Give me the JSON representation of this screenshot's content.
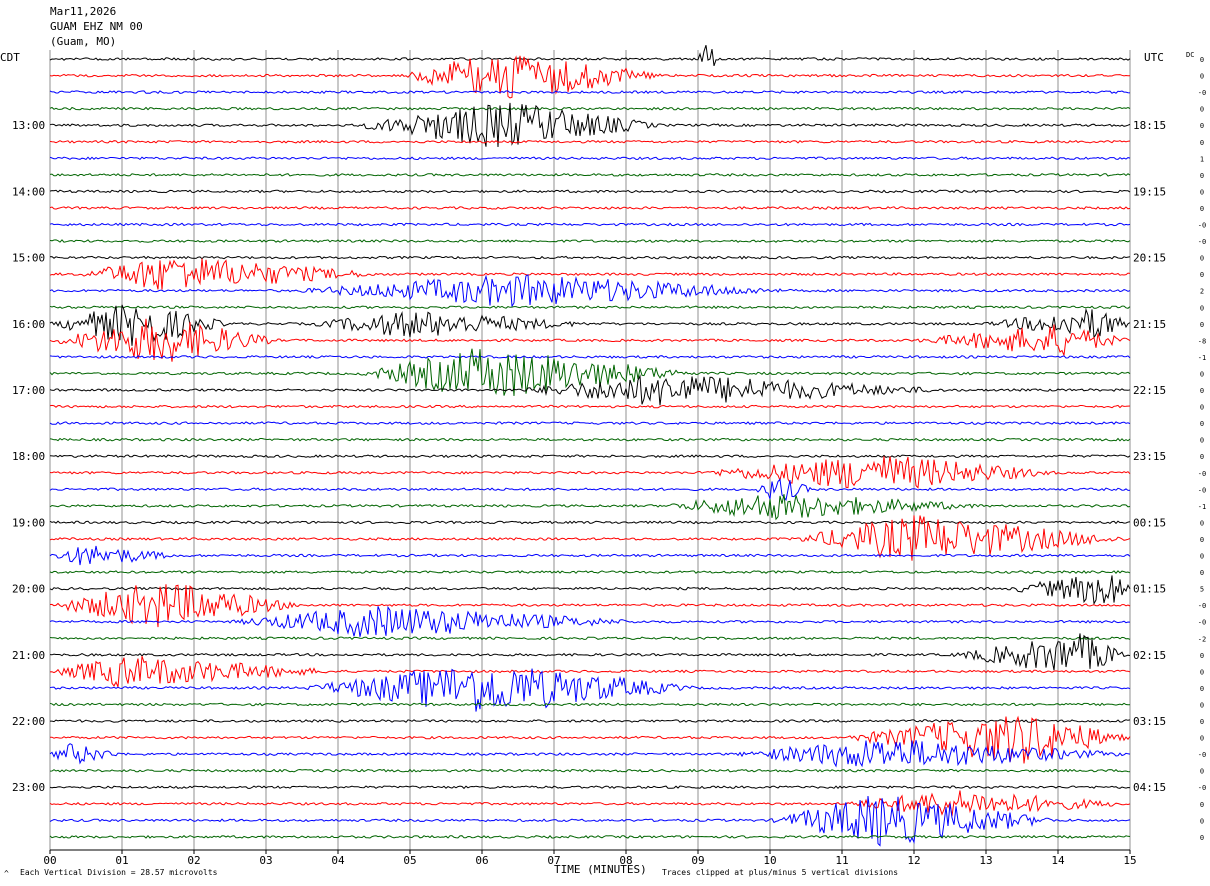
{
  "header": {
    "date": "Mar11,2026",
    "station": "GUAM EHZ NM 00",
    "location": "(Guam, MO)"
  },
  "left_axis_title": "CDT",
  "right_axis_title": "UTC",
  "dc_label": "DC",
  "footer": {
    "scale_note": "Each Vertical Division =   28.57 microvolts",
    "clip_note": "Traces clipped at plus/minus 5 vertical divisions",
    "corner_mark": "^"
  },
  "chart_data": {
    "type": "line",
    "title": "",
    "xlabel": "TIME (MINUTES)",
    "ylabel": "",
    "xlim": [
      0,
      15
    ],
    "x_ticks": [
      "00",
      "01",
      "02",
      "03",
      "04",
      "05",
      "06",
      "07",
      "08",
      "09",
      "10",
      "11",
      "12",
      "13",
      "14",
      "15"
    ],
    "trace_count": 48,
    "trace_colors": [
      "#000000",
      "#ff0000",
      "#0000ff",
      "#006400"
    ],
    "left_hour_labels": [
      {
        "trace": 4,
        "label": "13:00"
      },
      {
        "trace": 8,
        "label": "14:00"
      },
      {
        "trace": 12,
        "label": "15:00"
      },
      {
        "trace": 16,
        "label": "16:00"
      },
      {
        "trace": 20,
        "label": "17:00"
      },
      {
        "trace": 24,
        "label": "18:00"
      },
      {
        "trace": 28,
        "label": "19:00"
      },
      {
        "trace": 32,
        "label": "20:00"
      },
      {
        "trace": 36,
        "label": "21:00"
      },
      {
        "trace": 40,
        "label": "22:00"
      },
      {
        "trace": 44,
        "label": "23:00"
      }
    ],
    "right_hour_labels": [
      {
        "trace": 4,
        "label": "18:15"
      },
      {
        "trace": 8,
        "label": "19:15"
      },
      {
        "trace": 12,
        "label": "20:15"
      },
      {
        "trace": 16,
        "label": "21:15"
      },
      {
        "trace": 20,
        "label": "22:15"
      },
      {
        "trace": 24,
        "label": "23:15"
      },
      {
        "trace": 28,
        "label": "00:15"
      },
      {
        "trace": 32,
        "label": "01:15"
      },
      {
        "trace": 36,
        "label": "02:15"
      },
      {
        "trace": 40,
        "label": "03:15"
      },
      {
        "trace": 44,
        "label": "04:15"
      }
    ],
    "dc_offsets": [
      "0",
      "0",
      "-0",
      "0",
      "0",
      "0",
      "1",
      "0",
      "0",
      "0",
      "-0",
      "-0",
      "0",
      "0",
      "2",
      "0",
      "0",
      "-8",
      "-1",
      "0",
      "0",
      "0",
      "0",
      "0",
      "0",
      "-0",
      "-0",
      "-1",
      "0",
      "0",
      "0",
      "0",
      "5",
      "-0",
      "-0",
      "-2",
      "0",
      "0",
      "0",
      "0",
      "0",
      "0",
      "-0",
      "0",
      "-0",
      "0",
      "0",
      "0"
    ],
    "events": [
      {
        "trace": 1,
        "x_start": 4.9,
        "x_peak": 6.3,
        "x_end": 8.5,
        "amplitude": 1.0
      },
      {
        "trace": 4,
        "x_start": 4.2,
        "x_peak": 6.3,
        "x_end": 8.5,
        "amplitude": 0.9
      },
      {
        "trace": 0,
        "x_start": 9.0,
        "x_peak": 9.1,
        "x_end": 9.3,
        "amplitude": 0.8
      },
      {
        "trace": 13,
        "x_start": 0.4,
        "x_peak": 1.6,
        "x_end": 4.6,
        "amplitude": 0.7
      },
      {
        "trace": 14,
        "x_start": 3.4,
        "x_peak": 6.5,
        "x_end": 10.3,
        "amplitude": 0.6
      },
      {
        "trace": 16,
        "x_start": 0.0,
        "x_peak": 1.2,
        "x_end": 2.5,
        "amplitude": 0.85
      },
      {
        "trace": 17,
        "x_start": 0.0,
        "x_peak": 1.5,
        "x_end": 3.2,
        "amplitude": 0.9
      },
      {
        "trace": 16,
        "x_start": 3.6,
        "x_peak": 5.0,
        "x_end": 7.5,
        "amplitude": 0.5
      },
      {
        "trace": 16,
        "x_start": 13.0,
        "x_peak": 14.6,
        "x_end": 15.0,
        "amplitude": 0.6
      },
      {
        "trace": 17,
        "x_start": 12.0,
        "x_peak": 14.0,
        "x_end": 15.0,
        "amplitude": 0.6
      },
      {
        "trace": 19,
        "x_start": 4.3,
        "x_peak": 6.0,
        "x_end": 9.0,
        "amplitude": 1.0
      },
      {
        "trace": 20,
        "x_start": 6.5,
        "x_peak": 8.5,
        "x_end": 12.5,
        "amplitude": 0.6
      },
      {
        "trace": 25,
        "x_start": 9.0,
        "x_peak": 11.5,
        "x_end": 14.0,
        "amplitude": 0.7
      },
      {
        "trace": 26,
        "x_start": 9.8,
        "x_peak": 10.1,
        "x_end": 10.6,
        "amplitude": 0.5
      },
      {
        "trace": 27,
        "x_start": 8.5,
        "x_peak": 10.0,
        "x_end": 13.0,
        "amplitude": 0.5
      },
      {
        "trace": 29,
        "x_start": 10.3,
        "x_peak": 12.0,
        "x_end": 15.0,
        "amplitude": 0.9
      },
      {
        "trace": 30,
        "x_start": 0.0,
        "x_peak": 0.5,
        "x_end": 1.8,
        "amplitude": 0.4
      },
      {
        "trace": 33,
        "x_start": 0.0,
        "x_peak": 1.5,
        "x_end": 3.5,
        "amplitude": 0.9
      },
      {
        "trace": 32,
        "x_start": 13.3,
        "x_peak": 14.8,
        "x_end": 15.0,
        "amplitude": 0.7
      },
      {
        "trace": 34,
        "x_start": 2.5,
        "x_peak": 4.5,
        "x_end": 8.2,
        "amplitude": 0.6
      },
      {
        "trace": 36,
        "x_start": 12.5,
        "x_peak": 14.3,
        "x_end": 15.0,
        "amplitude": 0.8
      },
      {
        "trace": 37,
        "x_start": 0.0,
        "x_peak": 1.0,
        "x_end": 4.0,
        "amplitude": 0.6
      },
      {
        "trace": 38,
        "x_start": 3.5,
        "x_peak": 6.0,
        "x_end": 9.0,
        "amplitude": 1.0
      },
      {
        "trace": 41,
        "x_start": 11.0,
        "x_peak": 13.5,
        "x_end": 15.0,
        "amplitude": 1.0
      },
      {
        "trace": 42,
        "x_start": 0.0,
        "x_peak": 0.3,
        "x_end": 1.0,
        "amplitude": 0.4
      },
      {
        "trace": 42,
        "x_start": 9.5,
        "x_peak": 11.5,
        "x_end": 15.0,
        "amplitude": 0.6
      },
      {
        "trace": 45,
        "x_start": 11.0,
        "x_peak": 12.5,
        "x_end": 15.0,
        "amplitude": 0.5
      },
      {
        "trace": 46,
        "x_start": 10.0,
        "x_peak": 11.5,
        "x_end": 14.0,
        "amplitude": 1.0
      }
    ]
  }
}
